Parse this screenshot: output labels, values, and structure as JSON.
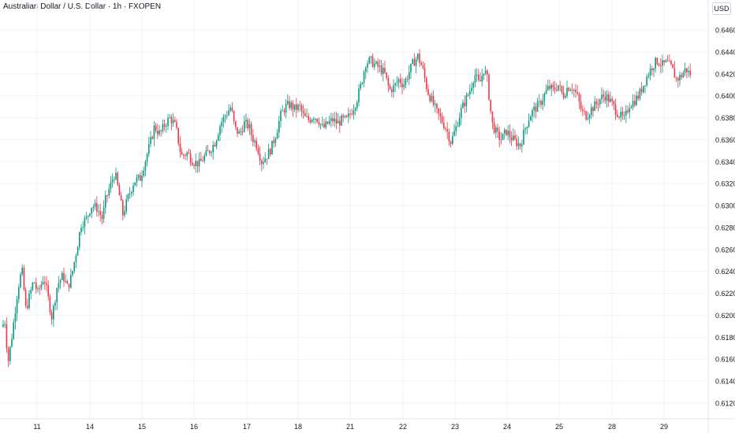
{
  "title": "Australian Dollar / U.S. Dollar · 1h · FXOPEN",
  "currency": "USD",
  "colors": {
    "up": "#089981",
    "down": "#f23645",
    "grid": "#f0f3fa",
    "text": "#131722",
    "axis": "#e0e3eb"
  },
  "chart_data": {
    "type": "candlestick",
    "title": "Australian Dollar / U.S. Dollar · 1h · FXOPEN",
    "xlabel": "",
    "ylabel": "",
    "currency": "USD",
    "ylim": [
      0.6108,
      0.6475
    ],
    "y_ticks": [
      "0.61200",
      "0.61400",
      "0.61600",
      "0.61800",
      "0.62000",
      "0.62200",
      "0.62400",
      "0.62600",
      "0.62800",
      "0.63000",
      "0.63200",
      "0.63400",
      "0.63600",
      "0.63800",
      "0.64000",
      "0.64200",
      "0.64400",
      "0.64600"
    ],
    "x_ticks": [
      "11",
      "14",
      "15",
      "16",
      "17",
      "18",
      "21",
      "22",
      "23",
      "24",
      "25",
      "28",
      "29"
    ],
    "grid": true,
    "series_close_path": [
      [
        0,
        0.6185
      ],
      [
        9,
        0.6195
      ],
      [
        12,
        0.6155
      ],
      [
        18,
        0.6185
      ],
      [
        25,
        0.6225
      ],
      [
        30,
        0.6242
      ],
      [
        35,
        0.6205
      ],
      [
        45,
        0.6232
      ],
      [
        50,
        0.622
      ],
      [
        58,
        0.6235
      ],
      [
        68,
        0.6198
      ],
      [
        75,
        0.6228
      ],
      [
        82,
        0.6236
      ],
      [
        88,
        0.6225
      ],
      [
        93,
        0.6236
      ],
      [
        100,
        0.6262
      ],
      [
        105,
        0.6283
      ],
      [
        112,
        0.6288
      ],
      [
        118,
        0.63
      ],
      [
        125,
        0.6298
      ],
      [
        132,
        0.6288
      ],
      [
        136,
        0.6305
      ],
      [
        142,
        0.6318
      ],
      [
        148,
        0.633
      ],
      [
        152,
        0.6315
      ],
      [
        158,
        0.6292
      ],
      [
        165,
        0.6308
      ],
      [
        172,
        0.6322
      ],
      [
        180,
        0.6325
      ],
      [
        186,
        0.634
      ],
      [
        192,
        0.6355
      ],
      [
        198,
        0.6372
      ],
      [
        205,
        0.6365
      ],
      [
        212,
        0.6375
      ],
      [
        218,
        0.638
      ],
      [
        225,
        0.6372
      ],
      [
        232,
        0.6345
      ],
      [
        240,
        0.6348
      ],
      [
        247,
        0.634
      ],
      [
        255,
        0.6338
      ],
      [
        262,
        0.6345
      ],
      [
        268,
        0.635
      ],
      [
        275,
        0.6358
      ],
      [
        282,
        0.6375
      ],
      [
        288,
        0.6382
      ],
      [
        295,
        0.639
      ],
      [
        300,
        0.637
      ],
      [
        306,
        0.6365
      ],
      [
        312,
        0.6375
      ],
      [
        318,
        0.6372
      ],
      [
        322,
        0.6362
      ],
      [
        328,
        0.6355
      ],
      [
        334,
        0.634
      ],
      [
        340,
        0.6345
      ],
      [
        346,
        0.6352
      ],
      [
        352,
        0.6365
      ],
      [
        358,
        0.6382
      ],
      [
        364,
        0.639
      ],
      [
        370,
        0.6392
      ],
      [
        376,
        0.6388
      ],
      [
        382,
        0.639
      ],
      [
        388,
        0.638
      ],
      [
        394,
        0.6378
      ],
      [
        400,
        0.6382
      ],
      [
        406,
        0.6378
      ],
      [
        412,
        0.637
      ],
      [
        418,
        0.6375
      ],
      [
        424,
        0.6378
      ],
      [
        430,
        0.6375
      ],
      [
        436,
        0.6378
      ],
      [
        442,
        0.6378
      ],
      [
        448,
        0.6386
      ],
      [
        454,
        0.6395
      ],
      [
        460,
        0.641
      ],
      [
        466,
        0.643
      ],
      [
        472,
        0.6432
      ],
      [
        478,
        0.6428
      ],
      [
        484,
        0.6425
      ],
      [
        490,
        0.642
      ],
      [
        496,
        0.6405
      ],
      [
        502,
        0.6408
      ],
      [
        508,
        0.6415
      ],
      [
        514,
        0.641
      ],
      [
        520,
        0.642
      ],
      [
        526,
        0.643
      ],
      [
        532,
        0.6436
      ],
      [
        538,
        0.6425
      ],
      [
        544,
        0.6405
      ],
      [
        550,
        0.6395
      ],
      [
        556,
        0.6385
      ],
      [
        562,
        0.6378
      ],
      [
        568,
        0.637
      ],
      [
        574,
        0.6358
      ],
      [
        580,
        0.637
      ],
      [
        586,
        0.6385
      ],
      [
        592,
        0.6395
      ],
      [
        598,
        0.6405
      ],
      [
        604,
        0.642
      ],
      [
        610,
        0.641
      ],
      [
        616,
        0.6425
      ],
      [
        620,
        0.6415
      ],
      [
        626,
        0.6375
      ],
      [
        632,
        0.6365
      ],
      [
        638,
        0.636
      ],
      [
        644,
        0.6368
      ],
      [
        650,
        0.6362
      ],
      [
        656,
        0.6358
      ],
      [
        662,
        0.6355
      ],
      [
        668,
        0.637
      ],
      [
        674,
        0.6382
      ],
      [
        680,
        0.6388
      ],
      [
        686,
        0.6392
      ],
      [
        692,
        0.64
      ],
      [
        698,
        0.6408
      ],
      [
        704,
        0.6405
      ],
      [
        710,
        0.641
      ],
      [
        716,
        0.64
      ],
      [
        722,
        0.6408
      ],
      [
        728,
        0.6408
      ],
      [
        734,
        0.64
      ],
      [
        740,
        0.6385
      ],
      [
        746,
        0.6382
      ],
      [
        752,
        0.6388
      ],
      [
        758,
        0.6392
      ],
      [
        764,
        0.6398
      ],
      [
        770,
        0.64
      ],
      [
        776,
        0.6395
      ],
      [
        782,
        0.6388
      ],
      [
        788,
        0.6382
      ],
      [
        794,
        0.6378
      ],
      [
        800,
        0.6392
      ],
      [
        806,
        0.6395
      ],
      [
        812,
        0.64
      ],
      [
        818,
        0.641
      ],
      [
        824,
        0.642
      ],
      [
        830,
        0.6428
      ],
      [
        836,
        0.6432
      ],
      [
        842,
        0.6428
      ],
      [
        848,
        0.643
      ],
      [
        854,
        0.6425
      ],
      [
        860,
        0.6415
      ],
      [
        866,
        0.6418
      ],
      [
        872,
        0.6425
      ],
      [
        876,
        0.642
      ]
    ]
  }
}
